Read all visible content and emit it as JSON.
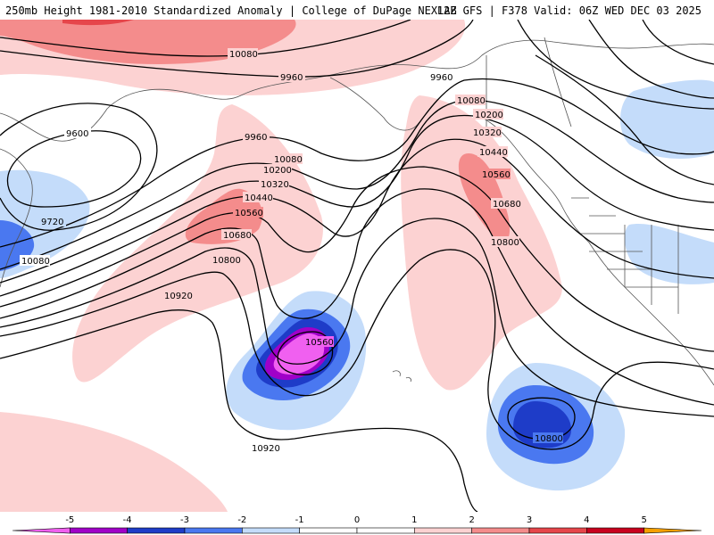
{
  "header": {
    "title": "250mb Height 1981-2010 Standardized Anomaly | College of DuPage NEXLAB",
    "run_info": "12Z GFS | F378 Valid: 06Z WED DEC 03 2025"
  },
  "map": {
    "height_labels": [
      "10080",
      "9960",
      "9960",
      "10080",
      "10200",
      "10320",
      "10440",
      "10560",
      "10680",
      "10800",
      "10920",
      "9600",
      "9720",
      "10080",
      "9960",
      "10080",
      "10200",
      "10320",
      "10440",
      "10560",
      "10680",
      "10800",
      "10560",
      "10800",
      "10920"
    ],
    "colors": {
      "neg5": "#f060f0",
      "neg4": "#a000c8",
      "neg3": "#1e3cc8",
      "neg2": "#4a78f0",
      "neg1": "#c4dcfa",
      "pos1": "#fcd2d2",
      "pos2": "#f48c8c",
      "pos3": "#e6464b",
      "pos4": "#c8001e",
      "pos5": "#f5a000",
      "coast": "#555555",
      "contour": "#000000"
    }
  },
  "colorbar": {
    "tick_labels": [
      "-5",
      "-4",
      "-3",
      "-2",
      "-1",
      "0",
      "1",
      "2",
      "3",
      "4",
      "5"
    ],
    "colors": [
      "#f060f0",
      "#a000c8",
      "#1e3cc8",
      "#4a78f0",
      "#c4dcfa",
      "#ffffff",
      "#ffffff",
      "#fcd2d2",
      "#f48c8c",
      "#e6464b",
      "#c8001e",
      "#f5a000"
    ]
  }
}
